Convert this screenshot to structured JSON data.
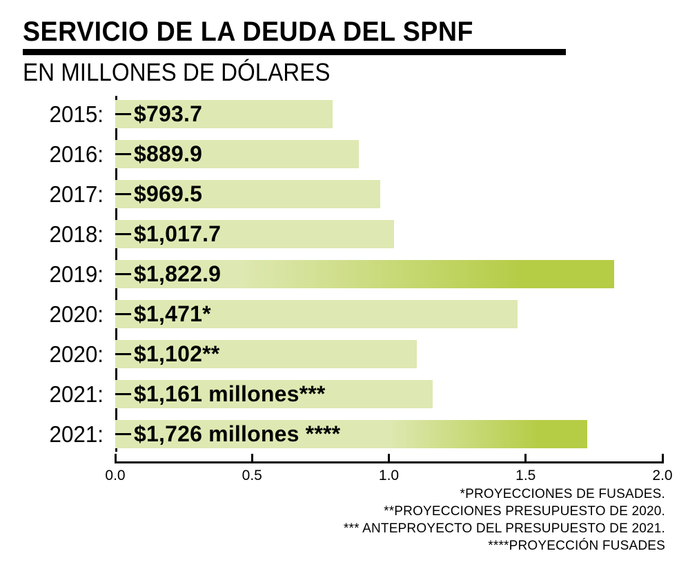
{
  "chart_data": {
    "type": "bar",
    "orientation": "horizontal",
    "title": "SERVICIO DE LA DEUDA DEL SPNF",
    "subtitle": "EN MILLONES DE DÓLARES",
    "axis": {
      "min": 0.0,
      "max": 2.0,
      "tick_labels": [
        "0.0",
        "0.5",
        "1.0",
        "1.5",
        "2.0"
      ],
      "position": "bottom",
      "grid": false
    },
    "bars": [
      {
        "year_label": "2015:",
        "value_label": "$793.7",
        "value_millions": 793.7,
        "axis_value": 0.7937,
        "gradient": null
      },
      {
        "year_label": "2016:",
        "value_label": "$889.9",
        "value_millions": 889.9,
        "axis_value": 0.8899,
        "gradient": null
      },
      {
        "year_label": "2017:",
        "value_label": "$969.5",
        "value_millions": 969.5,
        "axis_value": 0.9695,
        "gradient": null
      },
      {
        "year_label": "2018:",
        "value_label": "$1,017.7",
        "value_millions": 1017.7,
        "axis_value": 1.0177,
        "gradient": null
      },
      {
        "year_label": "2019:",
        "value_label": "$1,822.9",
        "value_millions": 1822.9,
        "axis_value": 1.8229,
        "gradient": {
          "light_until_pct": 25,
          "dark_from_pct": 82
        }
      },
      {
        "year_label": "2020:",
        "value_label": "$1,471*",
        "value_millions": 1471,
        "axis_value": 1.471,
        "gradient": null
      },
      {
        "year_label": "2020:",
        "value_label": "$1,102**",
        "value_millions": 1102,
        "axis_value": 1.102,
        "gradient": null
      },
      {
        "year_label": "2021:",
        "value_label": "$1,161 millones***",
        "value_millions": 1161,
        "axis_value": 1.161,
        "gradient": null
      },
      {
        "year_label": "2021:",
        "value_label": "$1,726 millones ****",
        "value_millions": 1726,
        "axis_value": 1.726,
        "gradient": {
          "light_until_pct": 58,
          "dark_from_pct": 90
        }
      }
    ],
    "footnotes": [
      "*PROYECCIONES DE FUSADES.",
      "**PROYECCIONES PRESUPUESTO DE 2020.",
      "*** ANTEPROYECTO DEL PRESUPUESTO DE 2021.",
      "****PROYECCIÓN FUSADES"
    ],
    "colors": {
      "bar_light": "#dee8b2",
      "bar_dark": "#b5cc45",
      "ink": "#000000",
      "background": "#ffffff"
    }
  }
}
